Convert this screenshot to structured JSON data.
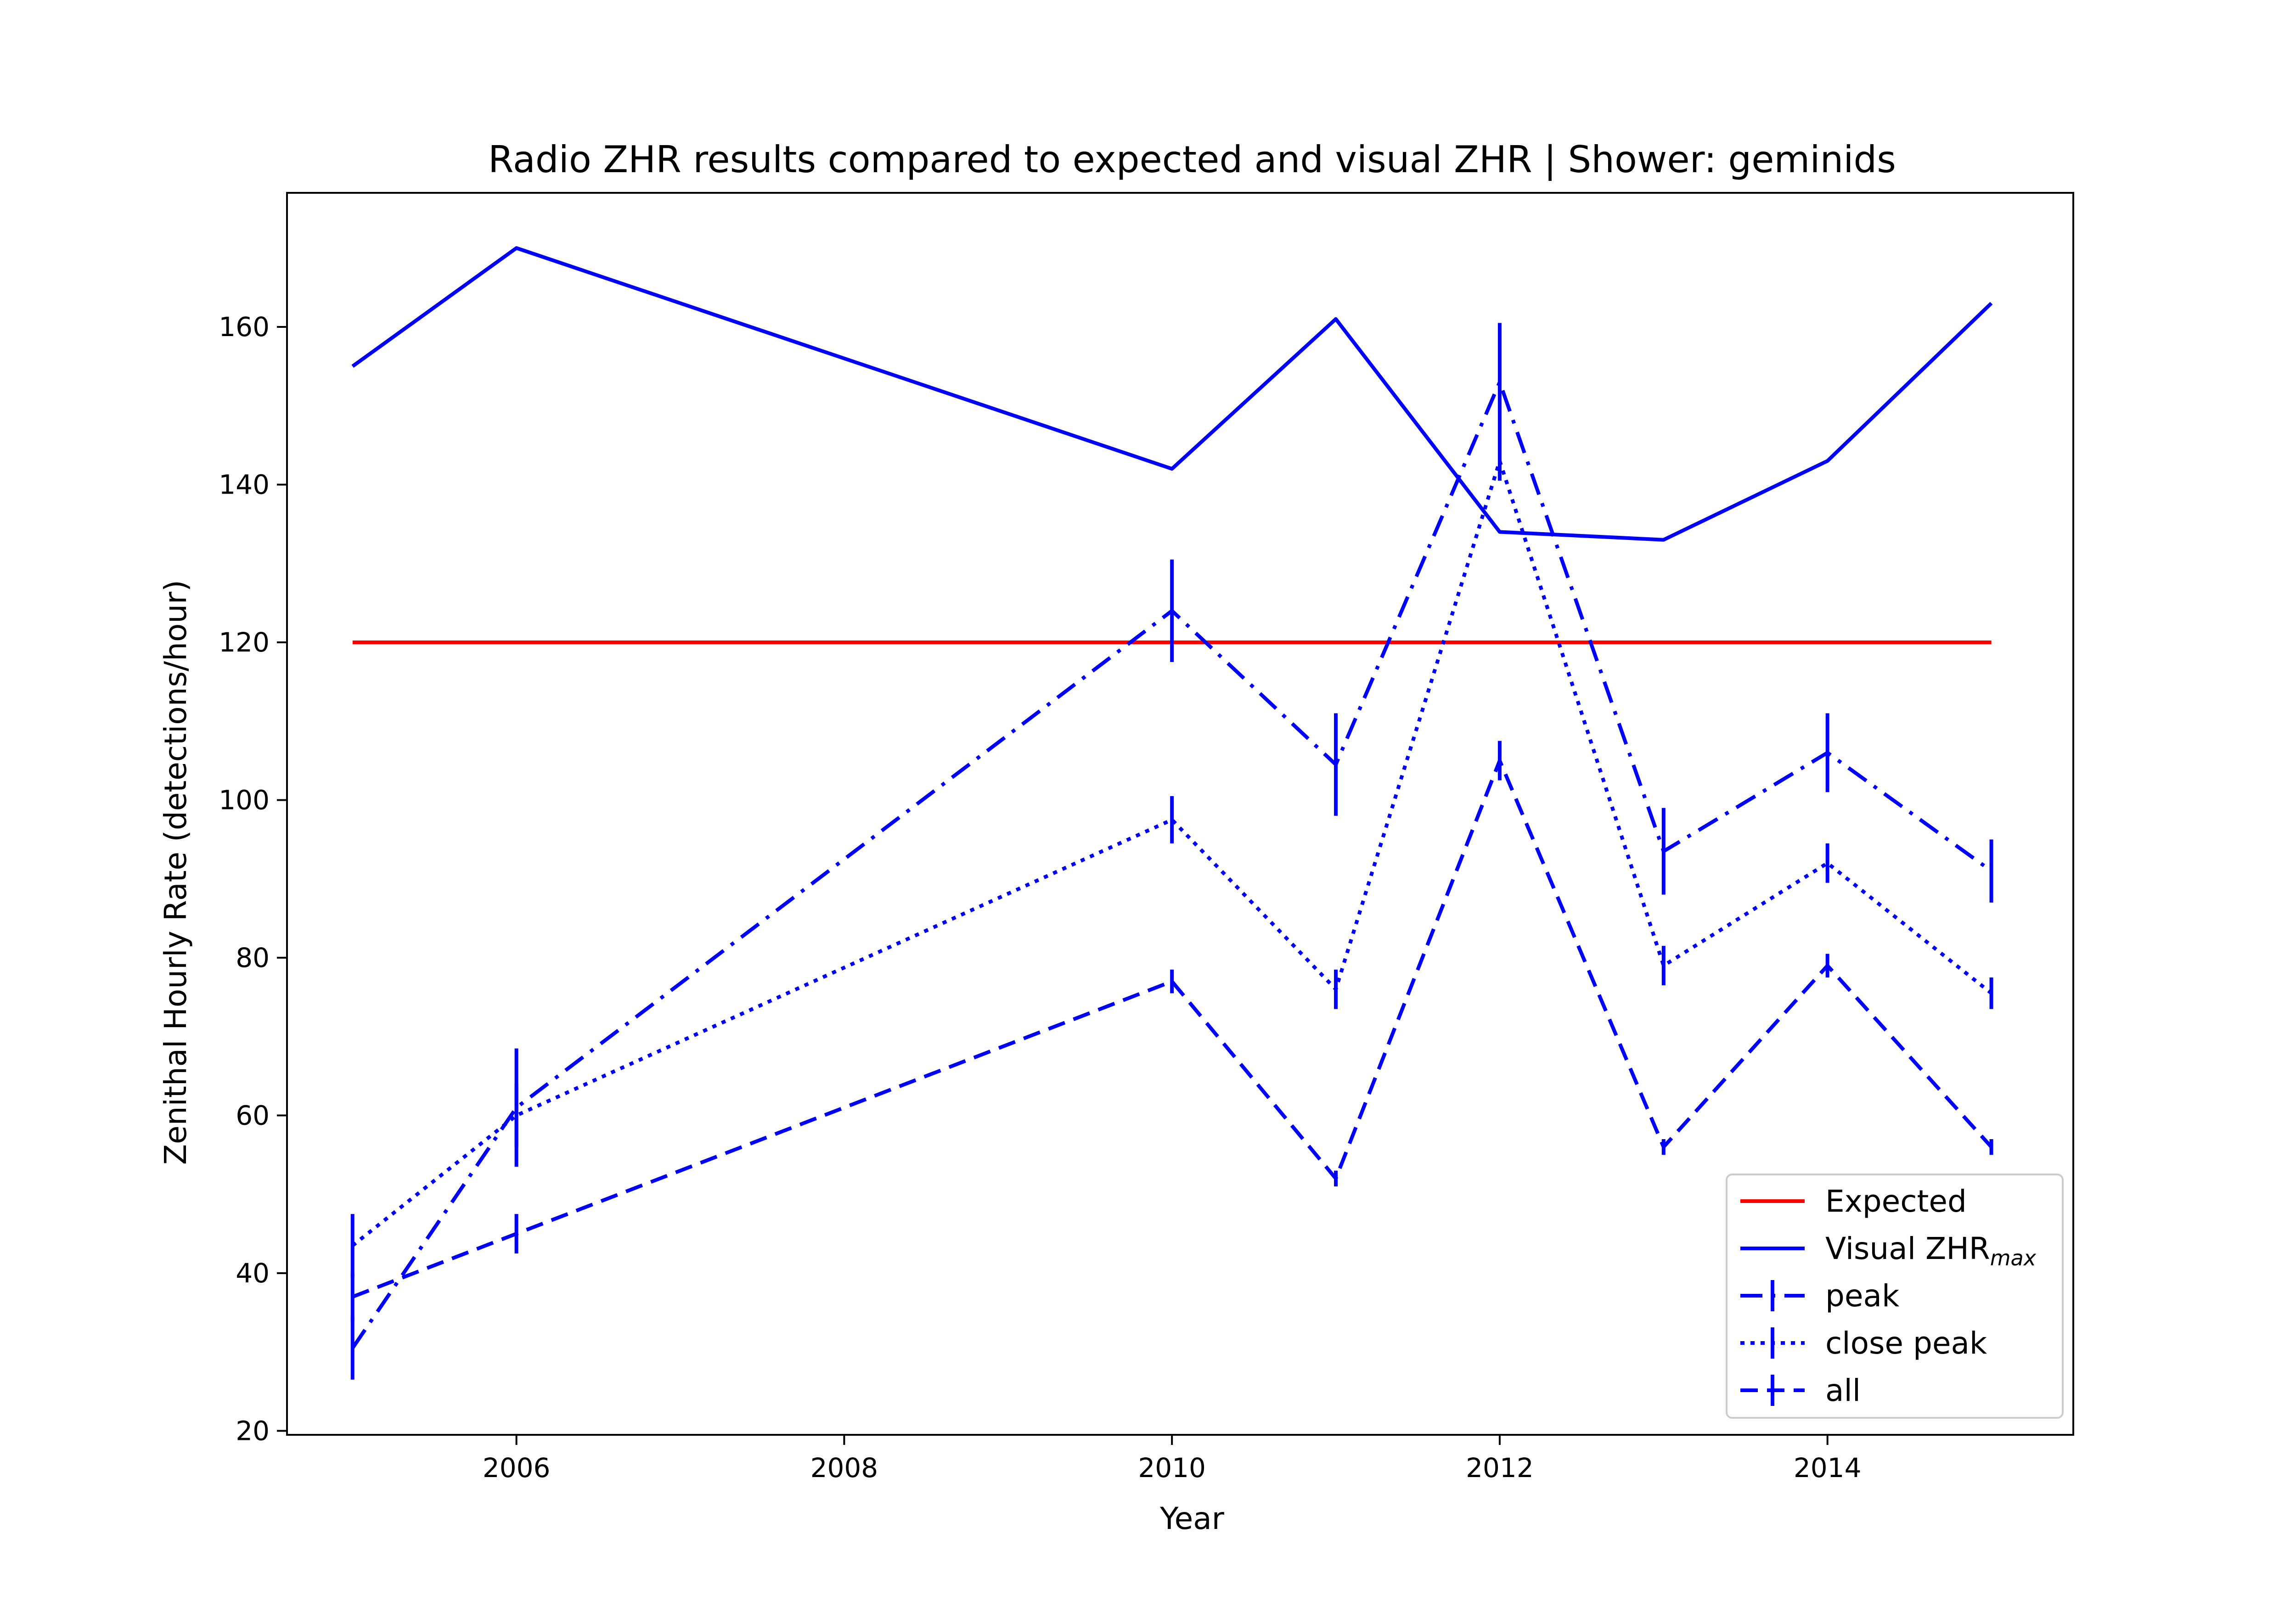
{
  "chart_data": {
    "type": "line",
    "title": "Radio ZHR results compared to expected and visual ZHR | Shower: geminids",
    "xlabel": "Year",
    "ylabel": "Zenithal Hourly Rate (detections/hour)",
    "xlim": [
      2004.6,
      2015.5
    ],
    "ylim": [
      19.5,
      177
    ],
    "xticks": [
      2006,
      2008,
      2010,
      2012,
      2014
    ],
    "yticks": [
      20,
      40,
      60,
      80,
      100,
      120,
      140,
      160
    ],
    "grid": false,
    "legend_position": "lower right",
    "series": [
      {
        "name": "Expected",
        "color": "#ff0000",
        "style": "solid",
        "x": [
          2005,
          2015
        ],
        "values": [
          120,
          120
        ]
      },
      {
        "name": "Visual ZHR",
        "name_subscript": "max",
        "color": "#0000ff",
        "style": "solid",
        "x": [
          2005,
          2006,
          2010,
          2011,
          2012,
          2013,
          2014,
          2015
        ],
        "values": [
          155,
          170,
          142,
          161,
          134,
          133,
          143,
          163
        ]
      },
      {
        "name": "peak",
        "color": "#0000ff",
        "style": "dashdot",
        "x": [
          2005,
          2006,
          2010,
          2011,
          2012,
          2013,
          2014,
          2015
        ],
        "values": [
          30.5,
          61,
          124,
          104.5,
          153,
          93.5,
          106,
          91
        ],
        "errors": [
          4,
          7.5,
          6.5,
          6.5,
          7.5,
          5.5,
          5,
          4
        ]
      },
      {
        "name": "close peak",
        "color": "#0000ff",
        "style": "dotted",
        "x": [
          2005,
          2006,
          2010,
          2011,
          2012,
          2013,
          2014,
          2015
        ],
        "values": [
          43.5,
          60,
          97.5,
          76,
          143,
          79,
          92,
          75.5
        ],
        "errors": [
          4,
          4,
          3,
          2.5,
          2.5,
          2.5,
          2.5,
          2
        ]
      },
      {
        "name": "all",
        "color": "#0000ff",
        "style": "dashed",
        "x": [
          2005,
          2006,
          2010,
          2011,
          2012,
          2013,
          2014,
          2015
        ],
        "values": [
          37,
          45,
          77,
          52,
          105,
          56,
          79,
          56
        ],
        "errors": [
          3,
          2.5,
          1.5,
          1,
          2.5,
          1,
          1.5,
          1
        ]
      }
    ]
  }
}
